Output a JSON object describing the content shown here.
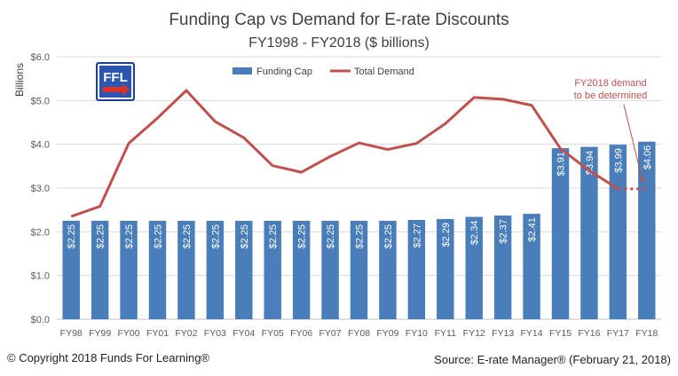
{
  "chart_data": {
    "type": "bar",
    "title": "Funding Cap vs Demand for E-rate Discounts",
    "subtitle": "FY1998 - FY2018 ($ billions)",
    "ylabel": "Billions",
    "xlabel": "",
    "ylim": [
      0,
      6
    ],
    "yticks": [
      "$0.0",
      "$1.0",
      "$2.0",
      "$3.0",
      "$4.0",
      "$5.0",
      "$6.0"
    ],
    "grid": true,
    "legend_position": "top",
    "categories": [
      "FY98",
      "FY99",
      "FY00",
      "FY01",
      "FY02",
      "FY03",
      "FY04",
      "FY05",
      "FY06",
      "FY07",
      "FY08",
      "FY09",
      "FY10",
      "FY11",
      "FY12",
      "FY13",
      "FY14",
      "FY15",
      "FY16",
      "FY17",
      "FY18"
    ],
    "series": [
      {
        "name": "Funding Cap",
        "type": "bar",
        "color": "#4a7ebb",
        "values": [
          2.25,
          2.25,
          2.25,
          2.25,
          2.25,
          2.25,
          2.25,
          2.25,
          2.25,
          2.25,
          2.25,
          2.25,
          2.27,
          2.29,
          2.34,
          2.37,
          2.41,
          3.91,
          3.94,
          3.99,
          4.06
        ],
        "labels": [
          "$2.25",
          "$2.25",
          "$2.25",
          "$2.25",
          "$2.25",
          "$2.25",
          "$2.25",
          "$2.25",
          "$2.25",
          "$2.25",
          "$2.25",
          "$2.25",
          "$2.27",
          "$2.29",
          "$2.34",
          "$2.37",
          "$2.41",
          "$3.91",
          "$3.94",
          "$3.99",
          "$4.06"
        ]
      },
      {
        "name": "Total Demand",
        "type": "line",
        "color": "#c0504d",
        "values": [
          2.35,
          2.58,
          4.02,
          4.6,
          5.23,
          4.52,
          4.15,
          3.51,
          3.36,
          3.72,
          4.03,
          3.88,
          4.02,
          4.47,
          5.07,
          5.03,
          4.89,
          3.9,
          3.4,
          2.98,
          null
        ]
      }
    ],
    "projection": {
      "from": "FY17",
      "to": "FY18",
      "value": 2.98
    },
    "annotation": {
      "lines": [
        "FY2018 demand",
        "to be determined"
      ],
      "color": "#c0504d"
    }
  },
  "logo": {
    "text": "FFL"
  },
  "footer": {
    "copyright": "© Copyright 2018 Funds For Learning®",
    "source": "Source: E-rate Manager® (February 21, 2018)"
  }
}
